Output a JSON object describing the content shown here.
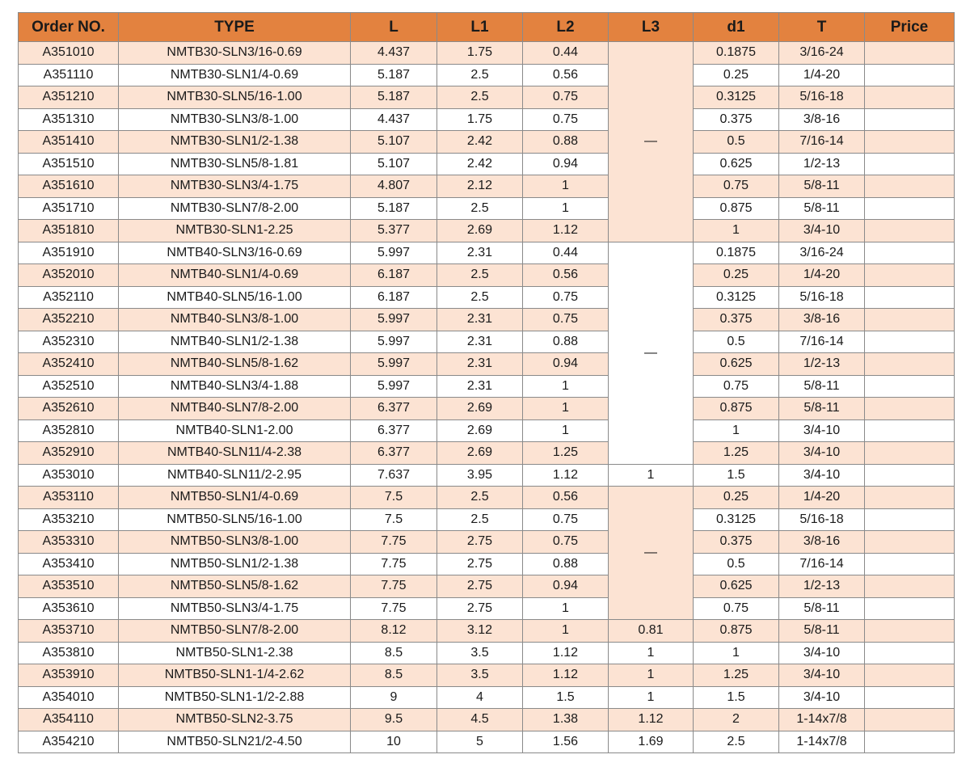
{
  "table": {
    "header": [
      "Order NO.",
      "TYPE",
      "L",
      "L1",
      "L2",
      "L3",
      "d1",
      "T",
      "Price"
    ],
    "rows": [
      [
        "A351010",
        "NMTB30-SLN3/16-0.69",
        "4.437",
        "1.75",
        "0.44",
        "—",
        "0.1875",
        "3/16-24"
      ],
      [
        "A351110",
        "NMTB30-SLN1/4-0.69",
        "5.187",
        "2.5",
        "0.56",
        null,
        "0.25",
        "1/4-20"
      ],
      [
        "A351210",
        "NMTB30-SLN5/16-1.00",
        "5.187",
        "2.5",
        "0.75",
        null,
        "0.3125",
        "5/16-18"
      ],
      [
        "A351310",
        "NMTB30-SLN3/8-1.00",
        "4.437",
        "1.75",
        "0.75",
        null,
        "0.375",
        "3/8-16"
      ],
      [
        "A351410",
        "NMTB30-SLN1/2-1.38",
        "5.107",
        "2.42",
        "0.88",
        null,
        "0.5",
        "7/16-14"
      ],
      [
        "A351510",
        "NMTB30-SLN5/8-1.81",
        "5.107",
        "2.42",
        "0.94",
        null,
        "0.625",
        "1/2-13"
      ],
      [
        "A351610",
        "NMTB30-SLN3/4-1.75",
        "4.807",
        "2.12",
        "1",
        null,
        "0.75",
        "5/8-11"
      ],
      [
        "A351710",
        "NMTB30-SLN7/8-2.00",
        "5.187",
        "2.5",
        "1",
        null,
        "0.875",
        "5/8-11"
      ],
      [
        "A351810",
        "NMTB30-SLN1-2.25",
        "5.377",
        "2.69",
        "1.12",
        null,
        "1",
        "3/4-10"
      ],
      [
        "A351910",
        "NMTB40-SLN3/16-0.69",
        "5.997",
        "2.31",
        "0.44",
        "—",
        "0.1875",
        "3/16-24"
      ],
      [
        "A352010",
        "NMTB40-SLN1/4-0.69",
        "6.187",
        "2.5",
        "0.56",
        null,
        "0.25",
        "1/4-20"
      ],
      [
        "A352110",
        "NMTB40-SLN5/16-1.00",
        "6.187",
        "2.5",
        "0.75",
        null,
        "0.3125",
        "5/16-18"
      ],
      [
        "A352210",
        "NMTB40-SLN3/8-1.00",
        "5.997",
        "2.31",
        "0.75",
        null,
        "0.375",
        "3/8-16"
      ],
      [
        "A352310",
        "NMTB40-SLN1/2-1.38",
        "5.997",
        "2.31",
        "0.88",
        null,
        "0.5",
        "7/16-14"
      ],
      [
        "A352410",
        "NMTB40-SLN5/8-1.62",
        "5.997",
        "2.31",
        "0.94",
        null,
        "0.625",
        "1/2-13"
      ],
      [
        "A352510",
        "NMTB40-SLN3/4-1.88",
        "5.997",
        "2.31",
        "1",
        null,
        "0.75",
        "5/8-11"
      ],
      [
        "A352610",
        "NMTB40-SLN7/8-2.00",
        "6.377",
        "2.69",
        "1",
        null,
        "0.875",
        "5/8-11"
      ],
      [
        "A352810",
        "NMTB40-SLN1-2.00",
        "6.377",
        "2.69",
        "1",
        null,
        "1",
        "3/4-10"
      ],
      [
        "A352910",
        "NMTB40-SLN11/4-2.38",
        "6.377",
        "2.69",
        "1.25",
        null,
        "1.25",
        "3/4-10"
      ],
      [
        "A353010",
        "NMTB40-SLN11/2-2.95",
        "7.637",
        "3.95",
        "1.12",
        "1",
        "1.5",
        "3/4-10"
      ],
      [
        "A353110",
        "NMTB50-SLN1/4-0.69",
        "7.5",
        "2.5",
        "0.56",
        "—",
        "0.25",
        "1/4-20"
      ],
      [
        "A353210",
        "NMTB50-SLN5/16-1.00",
        "7.5",
        "2.5",
        "0.75",
        null,
        "0.3125",
        "5/16-18"
      ],
      [
        "A353310",
        "NMTB50-SLN3/8-1.00",
        "7.75",
        "2.75",
        "0.75",
        null,
        "0.375",
        "3/8-16"
      ],
      [
        "A353410",
        "NMTB50-SLN1/2-1.38",
        "7.75",
        "2.75",
        "0.88",
        null,
        "0.5",
        "7/16-14"
      ],
      [
        "A353510",
        "NMTB50-SLN5/8-1.62",
        "7.75",
        "2.75",
        "0.94",
        null,
        "0.625",
        "1/2-13"
      ],
      [
        "A353610",
        "NMTB50-SLN3/4-1.75",
        "7.75",
        "2.75",
        "1",
        null,
        "0.75",
        "5/8-11"
      ],
      [
        "A353710",
        "NMTB50-SLN7/8-2.00",
        "8.12",
        "3.12",
        "1",
        "0.81",
        "0.875",
        "5/8-11"
      ],
      [
        "A353810",
        "NMTB50-SLN1-2.38",
        "8.5",
        "3.5",
        "1.12",
        "1",
        "1",
        "3/4-10"
      ],
      [
        "A353910",
        "NMTB50-SLN1-1/4-2.62",
        "8.5",
        "3.5",
        "1.12",
        "1",
        "1.25",
        "3/4-10"
      ],
      [
        "A354010",
        "NMTB50-SLN1-1/2-2.88",
        "9",
        "4",
        "1.5",
        "1",
        "1.5",
        "3/4-10"
      ],
      [
        "A354110",
        "NMTB50-SLN2-3.75",
        "9.5",
        "4.5",
        "1.38",
        "1.12",
        "2",
        "1-14x7/8"
      ],
      [
        "A354210",
        "NMTB50-SLN21/2-4.50",
        "10",
        "5",
        "1.56",
        "1.69",
        "2.5",
        "1-14x7/8"
      ]
    ]
  }
}
